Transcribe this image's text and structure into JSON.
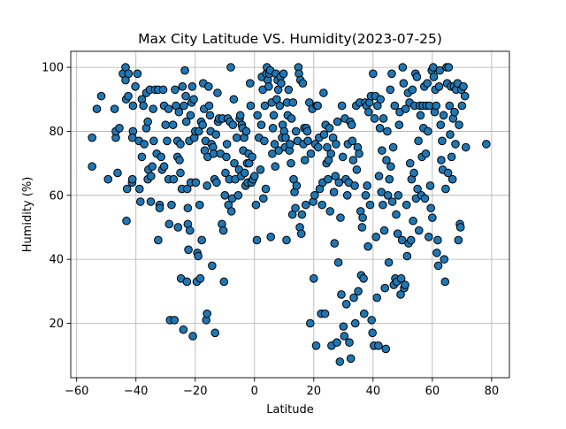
{
  "chart_data": {
    "type": "scatter",
    "title": "Max City Latitude VS. Humidity(2023-07-25)",
    "xlabel": "Latitude",
    "ylabel": "Humidity (%)",
    "xlim": [
      -62,
      86
    ],
    "ylim": [
      3,
      105
    ],
    "xticks": [
      -60,
      -40,
      -20,
      0,
      20,
      40,
      60,
      80
    ],
    "yticks": [
      20,
      40,
      60,
      80,
      100
    ],
    "xtick_labels": [
      "−60",
      "−40",
      "−20",
      "0",
      "20",
      "40",
      "60",
      "80"
    ],
    "ytick_labels": [
      "20",
      "40",
      "60",
      "80",
      "100"
    ],
    "grid": true,
    "marker_color": "#1f77b4",
    "marker_edge_color": "#000000",
    "points": [
      [
        -54.8,
        78
      ],
      [
        -54.8,
        69
      ],
      [
        -53.2,
        87
      ],
      [
        -51.7,
        91
      ],
      [
        -49.4,
        65
      ],
      [
        -47.2,
        87
      ],
      [
        -46.8,
        78
      ],
      [
        -46.8,
        80
      ],
      [
        -46.2,
        67
      ],
      [
        -45.6,
        81
      ],
      [
        -44.4,
        98
      ],
      [
        -43.5,
        100
      ],
      [
        -43.5,
        96
      ],
      [
        -43.3,
        90
      ],
      [
        -43.0,
        62
      ],
      [
        -42.6,
        91
      ],
      [
        -43.2,
        52
      ],
      [
        -42.5,
        98
      ],
      [
        -41.3,
        64
      ],
      [
        -41.2,
        65
      ],
      [
        -41.0,
        80
      ],
      [
        -41.0,
        88
      ],
      [
        -41.2,
        78
      ],
      [
        -40.2,
        94
      ],
      [
        -39.5,
        98
      ],
      [
        -39.0,
        77
      ],
      [
        -38.8,
        62
      ],
      [
        -38.5,
        58
      ],
      [
        -38.0,
        90
      ],
      [
        -38.0,
        72
      ],
      [
        -37.5,
        88
      ],
      [
        -37.2,
        76
      ],
      [
        -36.5,
        81
      ],
      [
        -36.0,
        65
      ],
      [
        -36.0,
        83
      ],
      [
        -36.5,
        92
      ],
      [
        -35.8,
        68
      ],
      [
        -35.3,
        93
      ],
      [
        -35.0,
        58
      ],
      [
        -34.9,
        66
      ],
      [
        -34.5,
        69
      ],
      [
        -34.2,
        87
      ],
      [
        -34.0,
        77
      ],
      [
        -33.5,
        93
      ],
      [
        -33.0,
        73
      ],
      [
        -32.5,
        93
      ],
      [
        -32.5,
        46
      ],
      [
        -32.0,
        57
      ],
      [
        -32.0,
        56
      ],
      [
        -31.5,
        72
      ],
      [
        -31.2,
        68
      ],
      [
        -30.8,
        93
      ],
      [
        -30.5,
        88
      ],
      [
        -30.5,
        69
      ],
      [
        -30.0,
        82
      ],
      [
        -29.5,
        77
      ],
      [
        -29.0,
        65
      ],
      [
        -29.0,
        87
      ],
      [
        -28.8,
        51
      ],
      [
        -28.5,
        21
      ],
      [
        -28.0,
        57
      ],
      [
        -27.5,
        82
      ],
      [
        -27.3,
        65
      ],
      [
        -27.0,
        21
      ],
      [
        -26.8,
        93
      ],
      [
        -26.5,
        88
      ],
      [
        -26.0,
        77
      ],
      [
        -26.0,
        72
      ],
      [
        -25.8,
        50
      ],
      [
        -25.5,
        86
      ],
      [
        -25.3,
        71
      ],
      [
        -25.0,
        76
      ],
      [
        -25.0,
        67
      ],
      [
        -24.8,
        34
      ],
      [
        -24.5,
        62
      ],
      [
        -24.3,
        94
      ],
      [
        -24.0,
        18
      ],
      [
        -23.8,
        88
      ],
      [
        -23.5,
        99
      ],
      [
        -23.2,
        91
      ],
      [
        -23.0,
        83
      ],
      [
        -22.8,
        33
      ],
      [
        -22.7,
        62
      ],
      [
        -22.5,
        56
      ],
      [
        -22.5,
        51
      ],
      [
        -22.3,
        43
      ],
      [
        -22.0,
        77
      ],
      [
        -21.8,
        49
      ],
      [
        -21.6,
        85
      ],
      [
        -21.5,
        64
      ],
      [
        -21.2,
        89
      ],
      [
        -21.0,
        94
      ],
      [
        -20.8,
        16
      ],
      [
        -20.5,
        90
      ],
      [
        -20.3,
        78
      ],
      [
        -20.0,
        80
      ],
      [
        -19.8,
        64
      ],
      [
        -19.5,
        33
      ],
      [
        -19.3,
        42
      ],
      [
        -19.0,
        41
      ],
      [
        -18.8,
        80
      ],
      [
        -18.5,
        57
      ],
      [
        -18.3,
        34
      ],
      [
        -18.0,
        83
      ],
      [
        -17.8,
        46
      ],
      [
        -17.5,
        82
      ],
      [
        -17.3,
        95
      ],
      [
        -17.0,
        87
      ],
      [
        -16.8,
        74
      ],
      [
        -16.5,
        77
      ],
      [
        -16.3,
        21
      ],
      [
        -16.0,
        23
      ],
      [
        -16.0,
        63
      ],
      [
        -15.8,
        72
      ],
      [
        -15.5,
        94
      ],
      [
        -15.3,
        88
      ],
      [
        -15.0,
        85
      ],
      [
        -14.8,
        80
      ],
      [
        -14.5,
        76
      ],
      [
        -14.3,
        38
      ],
      [
        -14.0,
        75
      ],
      [
        -13.8,
        73
      ],
      [
        -13.5,
        65
      ],
      [
        -13.3,
        17
      ],
      [
        -13.0,
        79
      ],
      [
        -12.8,
        64
      ],
      [
        -12.5,
        92
      ],
      [
        -12.3,
        83
      ],
      [
        -12.0,
        84
      ],
      [
        -11.5,
        73
      ],
      [
        -11.0,
        51
      ],
      [
        -10.8,
        84
      ],
      [
        -10.5,
        49
      ],
      [
        -10.3,
        33
      ],
      [
        -10.0,
        60
      ],
      [
        -9.8,
        67
      ],
      [
        -9.5,
        72
      ],
      [
        -9.3,
        76
      ],
      [
        -9.0,
        84
      ],
      [
        -8.8,
        57
      ],
      [
        -8.5,
        65
      ],
      [
        -8.3,
        83
      ],
      [
        -8.0,
        100
      ],
      [
        -7.8,
        55
      ],
      [
        -7.5,
        59
      ],
      [
        -7.3,
        82
      ],
      [
        -7.0,
        90
      ],
      [
        -6.8,
        70
      ],
      [
        -6.5,
        65
      ],
      [
        -6.0,
        78
      ],
      [
        -5.5,
        60
      ],
      [
        -5.2,
        68
      ],
      [
        -5.0,
        84
      ],
      [
        -4.8,
        85
      ],
      [
        -4.5,
        66
      ],
      [
        -4.3,
        82
      ],
      [
        -4.0,
        81
      ],
      [
        -3.8,
        74
      ],
      [
        -3.5,
        78
      ],
      [
        -3.3,
        67
      ],
      [
        -3.0,
        63
      ],
      [
        -2.8,
        80
      ],
      [
        -2.5,
        70
      ],
      [
        -2.3,
        64
      ],
      [
        -2.0,
        73
      ],
      [
        -1.8,
        70
      ],
      [
        -1.5,
        95
      ],
      [
        -1.3,
        88
      ],
      [
        -1.0,
        64
      ],
      [
        -0.8,
        72
      ],
      [
        -0.5,
        65
      ],
      [
        0.0,
        66
      ],
      [
        0.5,
        57
      ],
      [
        0.8,
        46
      ],
      [
        1.0,
        85
      ],
      [
        1.5,
        78
      ],
      [
        2.0,
        68
      ],
      [
        2.3,
        82
      ],
      [
        2.5,
        97
      ],
      [
        2.8,
        93
      ],
      [
        3.0,
        59
      ],
      [
        3.3,
        77
      ],
      [
        3.5,
        88
      ],
      [
        3.8,
        62
      ],
      [
        4.0,
        98
      ],
      [
        4.2,
        100
      ],
      [
        4.5,
        96
      ],
      [
        4.8,
        94
      ],
      [
        5.0,
        98
      ],
      [
        5.3,
        99
      ],
      [
        5.5,
        47
      ],
      [
        5.8,
        89
      ],
      [
        6.0,
        73
      ],
      [
        6.2,
        81
      ],
      [
        6.5,
        85
      ],
      [
        6.8,
        76
      ],
      [
        7.0,
        69
      ],
      [
        7.2,
        98
      ],
      [
        7.5,
        90
      ],
      [
        7.8,
        96
      ],
      [
        8.0,
        93
      ],
      [
        8.2,
        74
      ],
      [
        8.5,
        88
      ],
      [
        8.8,
        97
      ],
      [
        9.0,
        95
      ],
      [
        9.3,
        78
      ],
      [
        9.5,
        82
      ],
      [
        9.8,
        98
      ],
      [
        10.0,
        80
      ],
      [
        10.3,
        75
      ],
      [
        10.5,
        78
      ],
      [
        10.8,
        46
      ],
      [
        11.0,
        89
      ],
      [
        11.2,
        85
      ],
      [
        11.5,
        93
      ],
      [
        11.8,
        74
      ],
      [
        12.0,
        76
      ],
      [
        12.3,
        70
      ],
      [
        12.5,
        84
      ],
      [
        12.8,
        54
      ],
      [
        13.0,
        89
      ],
      [
        13.2,
        65
      ],
      [
        13.5,
        61
      ],
      [
        13.8,
        56
      ],
      [
        14.0,
        80
      ],
      [
        14.2,
        63
      ],
      [
        14.5,
        77
      ],
      [
        14.8,
        100
      ],
      [
        15.0,
        98
      ],
      [
        15.3,
        50
      ],
      [
        15.5,
        96
      ],
      [
        15.8,
        48
      ],
      [
        16.0,
        54
      ],
      [
        16.3,
        95
      ],
      [
        16.5,
        76
      ],
      [
        16.8,
        81
      ],
      [
        17.0,
        71
      ],
      [
        17.3,
        57
      ],
      [
        17.5,
        81
      ],
      [
        17.8,
        80
      ],
      [
        18.0,
        77
      ],
      [
        18.5,
        89
      ],
      [
        18.8,
        20
      ],
      [
        19.0,
        73
      ],
      [
        19.5,
        87
      ],
      [
        19.8,
        58
      ],
      [
        20.0,
        34
      ],
      [
        20.3,
        60
      ],
      [
        20.5,
        76
      ],
      [
        20.8,
        13
      ],
      [
        21.0,
        88
      ],
      [
        21.3,
        88
      ],
      [
        21.5,
        75
      ],
      [
        21.8,
        78
      ],
      [
        22.0,
        62
      ],
      [
        22.5,
        23
      ],
      [
        22.8,
        57
      ],
      [
        23.0,
        64
      ],
      [
        23.3,
        92
      ],
      [
        23.5,
        79
      ],
      [
        23.8,
        23
      ],
      [
        24.0,
        82
      ],
      [
        24.3,
        70
      ],
      [
        24.5,
        75
      ],
      [
        24.8,
        65
      ],
      [
        25.0,
        71
      ],
      [
        25.3,
        81
      ],
      [
        25.5,
        55
      ],
      [
        25.8,
        73
      ],
      [
        26.0,
        13
      ],
      [
        26.5,
        78
      ],
      [
        26.8,
        61
      ],
      [
        27.0,
        45
      ],
      [
        27.3,
        66
      ],
      [
        27.5,
        76
      ],
      [
        27.8,
        14
      ],
      [
        28.0,
        83
      ],
      [
        28.3,
        39
      ],
      [
        28.5,
        64
      ],
      [
        28.8,
        8
      ],
      [
        29.0,
        53
      ],
      [
        29.3,
        29
      ],
      [
        29.5,
        88
      ],
      [
        29.8,
        72
      ],
      [
        30.0,
        19
      ],
      [
        30.3,
        16
      ],
      [
        30.5,
        84
      ],
      [
        30.8,
        65
      ],
      [
        31.0,
        26
      ],
      [
        31.3,
        60
      ],
      [
        31.5,
        76
      ],
      [
        31.8,
        64
      ],
      [
        32.0,
        14
      ],
      [
        32.3,
        83
      ],
      [
        32.5,
        9
      ],
      [
        32.8,
        82
      ],
      [
        33.0,
        77
      ],
      [
        33.3,
        71
      ],
      [
        33.5,
        28
      ],
      [
        33.8,
        63
      ],
      [
        34.0,
        20
      ],
      [
        34.3,
        88
      ],
      [
        34.5,
        68
      ],
      [
        34.8,
        75
      ],
      [
        35.0,
        30
      ],
      [
        35.3,
        73
      ],
      [
        35.5,
        89
      ],
      [
        35.8,
        55
      ],
      [
        36.0,
        35
      ],
      [
        36.3,
        50
      ],
      [
        36.5,
        53
      ],
      [
        36.8,
        34
      ],
      [
        37.0,
        23
      ],
      [
        37.3,
        89
      ],
      [
        37.5,
        60
      ],
      [
        37.8,
        88
      ],
      [
        38.0,
        63
      ],
      [
        38.3,
        44
      ],
      [
        38.5,
        86
      ],
      [
        38.8,
        89
      ],
      [
        39.0,
        57
      ],
      [
        39.3,
        91
      ],
      [
        39.5,
        21
      ],
      [
        39.8,
        17
      ],
      [
        40.0,
        98
      ],
      [
        40.3,
        13
      ],
      [
        40.5,
        84
      ],
      [
        40.8,
        91
      ],
      [
        41.0,
        47
      ],
      [
        41.3,
        28
      ],
      [
        41.5,
        88
      ],
      [
        41.8,
        13
      ],
      [
        42.0,
        66
      ],
      [
        42.3,
        81
      ],
      [
        42.5,
        90
      ],
      [
        42.8,
        61
      ],
      [
        43.0,
        74
      ],
      [
        43.3,
        57
      ],
      [
        43.5,
        84
      ],
      [
        43.8,
        49
      ],
      [
        44.0,
        31
      ],
      [
        44.3,
        12
      ],
      [
        44.5,
        71
      ],
      [
        44.8,
        80
      ],
      [
        45.0,
        60
      ],
      [
        45.3,
        39
      ],
      [
        45.5,
        65
      ],
      [
        45.8,
        93
      ],
      [
        46.0,
        69
      ],
      [
        46.3,
        98
      ],
      [
        46.5,
        58
      ],
      [
        46.8,
        75
      ],
      [
        47.0,
        32
      ],
      [
        47.3,
        88
      ],
      [
        47.5,
        34
      ],
      [
        47.8,
        54
      ],
      [
        48.0,
        33
      ],
      [
        48.3,
        48
      ],
      [
        48.5,
        60
      ],
      [
        48.8,
        82
      ],
      [
        49.0,
        86
      ],
      [
        49.3,
        29
      ],
      [
        49.5,
        34
      ],
      [
        49.8,
        46
      ],
      [
        50.0,
        100
      ],
      [
        50.3,
        95
      ],
      [
        50.5,
        31
      ],
      [
        50.8,
        32
      ],
      [
        51.0,
        87
      ],
      [
        51.3,
        57
      ],
      [
        51.5,
        41
      ],
      [
        51.8,
        92
      ],
      [
        52.0,
        45
      ],
      [
        52.3,
        89
      ],
      [
        52.5,
        70
      ],
      [
        52.8,
        46
      ],
      [
        53.0,
        65
      ],
      [
        53.3,
        93
      ],
      [
        53.5,
        52
      ],
      [
        53.8,
        67
      ],
      [
        54.0,
        88
      ],
      [
        54.3,
        98
      ],
      [
        54.5,
        59
      ],
      [
        54.8,
        97
      ],
      [
        55.0,
        62
      ],
      [
        55.3,
        77
      ],
      [
        55.5,
        49
      ],
      [
        55.8,
        88
      ],
      [
        56.0,
        85
      ],
      [
        56.3,
        60
      ],
      [
        56.5,
        72
      ],
      [
        56.8,
        88
      ],
      [
        57.0,
        81
      ],
      [
        57.3,
        94
      ],
      [
        57.5,
        59
      ],
      [
        57.8,
        73
      ],
      [
        58.0,
        88
      ],
      [
        58.3,
        95
      ],
      [
        58.5,
        80
      ],
      [
        58.8,
        47
      ],
      [
        59.0,
        88
      ],
      [
        59.3,
        63
      ],
      [
        59.5,
        56
      ],
      [
        59.8,
        99
      ],
      [
        60.0,
        53
      ],
      [
        60.3,
        100
      ],
      [
        60.5,
        97
      ],
      [
        60.8,
        86
      ],
      [
        61.0,
        93
      ],
      [
        61.3,
        88
      ],
      [
        61.5,
        42
      ],
      [
        61.8,
        46
      ],
      [
        62.0,
        38
      ],
      [
        62.3,
        94
      ],
      [
        62.5,
        99
      ],
      [
        62.8,
        82
      ],
      [
        63.0,
        71
      ],
      [
        63.3,
        77
      ],
      [
        63.5,
        68
      ],
      [
        63.8,
        85
      ],
      [
        64.0,
        40
      ],
      [
        64.3,
        33
      ],
      [
        64.5,
        62
      ],
      [
        64.8,
        100
      ],
      [
        65.0,
        95
      ],
      [
        65.3,
        67
      ],
      [
        65.5,
        100
      ],
      [
        65.8,
        88
      ],
      [
        66.0,
        79
      ],
      [
        66.3,
        94
      ],
      [
        66.5,
        72
      ],
      [
        66.8,
        65
      ],
      [
        67.0,
        84
      ],
      [
        67.3,
        94
      ],
      [
        67.5,
        86
      ],
      [
        67.8,
        76
      ],
      [
        68.0,
        93
      ],
      [
        68.5,
        95
      ],
      [
        68.8,
        46
      ],
      [
        69.0,
        82
      ],
      [
        69.3,
        51
      ],
      [
        69.5,
        50
      ],
      [
        69.8,
        93
      ],
      [
        70.0,
        88
      ],
      [
        70.5,
        94
      ],
      [
        71.0,
        91
      ],
      [
        71.3,
        75
      ],
      [
        78.2,
        76
      ]
    ]
  }
}
